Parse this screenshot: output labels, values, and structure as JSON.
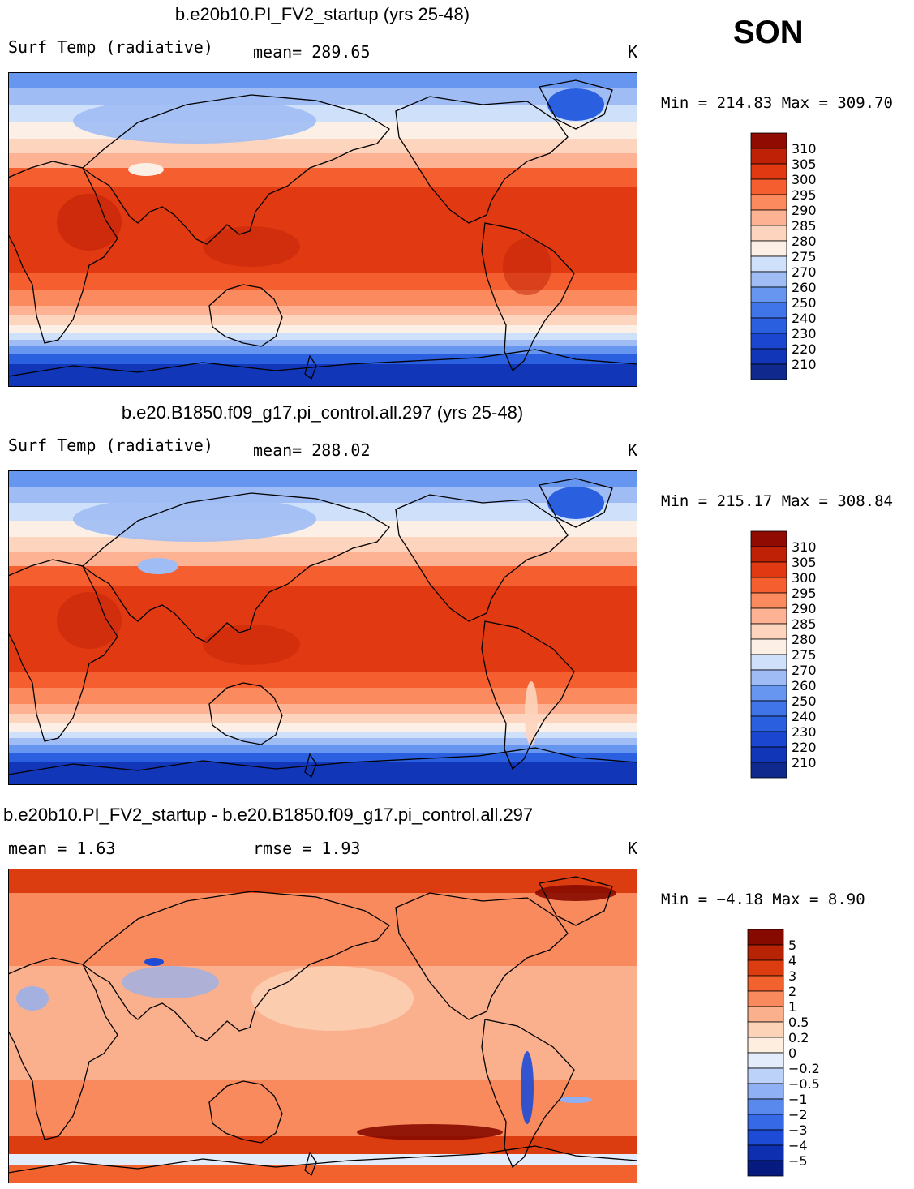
{
  "season": "SON",
  "colors": {
    "temp_scale": [
      "#0f2a8c",
      "#1136b8",
      "#1b47d0",
      "#2a5fe0",
      "#3f75e9",
      "#6696f0",
      "#9fbcf4",
      "#cfe0fa",
      "#fcf0e6",
      "#fdd4bd",
      "#fcb293",
      "#fb8a5e",
      "#f55f30",
      "#e13a12",
      "#bf2106",
      "#900b02"
    ],
    "diff_scale": [
      "#061a80",
      "#0d2fb0",
      "#1d4bd6",
      "#3569e6",
      "#5a89ee",
      "#8fb0f4",
      "#bcd2f8",
      "#e2ecfb",
      "#fdeee0",
      "#fdd3b8",
      "#fbb08d",
      "#f98a5e",
      "#f2622f",
      "#db3c10",
      "#b82205",
      "#860a00"
    ],
    "ocean_outline": "#000000"
  },
  "panels": [
    {
      "title": "b.e20b10.PI_FV2_startup (yrs 25-48)",
      "left_label": "Surf Temp (radiative)",
      "center_label": "mean= 289.65",
      "units": "K",
      "minmax": "Min = 214.83 Max = 309.70",
      "colorbar_labels": [
        "310",
        "305",
        "300",
        "295",
        "290",
        "285",
        "280",
        "275",
        "270",
        "260",
        "250",
        "240",
        "230",
        "220",
        "210"
      ]
    },
    {
      "title": "b.e20.B1850.f09_g17.pi_control.all.297 (yrs 25-48)",
      "left_label": "Surf Temp (radiative)",
      "center_label": "mean= 288.02",
      "units": "K",
      "minmax": "Min = 215.17 Max = 308.84",
      "colorbar_labels": [
        "310",
        "305",
        "300",
        "295",
        "290",
        "285",
        "280",
        "275",
        "270",
        "260",
        "250",
        "240",
        "230",
        "220",
        "210"
      ]
    },
    {
      "title": "b.e20b10.PI_FV2_startup - b.e20.B1850.f09_g17.pi_control.all.297",
      "left_label": "mean =    1.63",
      "center_label": "rmse =    1.93",
      "units": "K",
      "minmax": "Min =   −4.18 Max =    8.90",
      "colorbar_labels": [
        "5",
        "4",
        "3",
        "2",
        "1",
        "0.5",
        "0.2",
        "0",
        "−0.2",
        "−0.5",
        "−1",
        "−2",
        "−3",
        "−4",
        "−5"
      ]
    }
  ],
  "chart_data": [
    {
      "type": "heatmap",
      "title": "b.e20b10.PI_FV2_startup (yrs 25-48)",
      "variable": "Surf Temp (radiative)",
      "units": "K",
      "mean": 289.65,
      "min": 214.83,
      "max": 309.7,
      "levels": [
        210,
        220,
        230,
        240,
        250,
        260,
        270,
        275,
        280,
        285,
        290,
        295,
        300,
        305,
        310
      ]
    },
    {
      "type": "heatmap",
      "title": "b.e20.B1850.f09_g17.pi_control.all.297 (yrs 25-48)",
      "variable": "Surf Temp (radiative)",
      "units": "K",
      "mean": 288.02,
      "min": 215.17,
      "max": 308.84,
      "levels": [
        210,
        220,
        230,
        240,
        250,
        260,
        270,
        275,
        280,
        285,
        290,
        295,
        300,
        305,
        310
      ]
    },
    {
      "type": "heatmap",
      "title": "b.e20b10.PI_FV2_startup - b.e20.B1850.f09_g17.pi_control.all.297",
      "units": "K",
      "mean": 1.63,
      "rmse": 1.93,
      "min": -4.18,
      "max": 8.9,
      "levels": [
        -5,
        -4,
        -3,
        -2,
        -1,
        -0.5,
        -0.2,
        0,
        0.2,
        0.5,
        1,
        2,
        3,
        4,
        5
      ]
    }
  ]
}
